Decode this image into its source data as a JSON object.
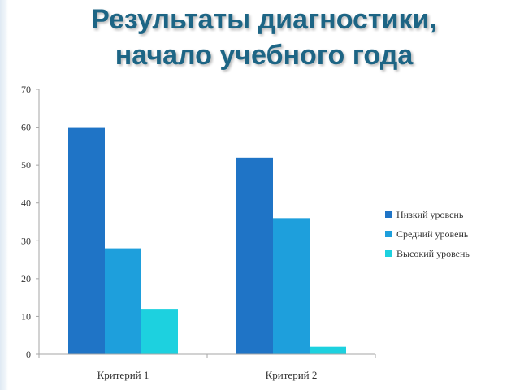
{
  "slide": {
    "title_line1": "Результаты диагностики,",
    "title_line2": "начало учебного года"
  },
  "colors": {
    "title": "#1d6585",
    "axis": "#a6a6a6"
  },
  "chart_data": {
    "type": "bar",
    "categories": [
      "Критерий 1",
      "Критерий 2"
    ],
    "series": [
      {
        "name": "Низкий уровень",
        "values": [
          60,
          52
        ],
        "color": "#1f74c6"
      },
      {
        "name": "Средний уровень",
        "values": [
          28,
          36
        ],
        "color": "#1e9fdc"
      },
      {
        "name": "Высокий уровень",
        "values": [
          12,
          2
        ],
        "color": "#1dd1df"
      }
    ],
    "ylim": [
      0,
      70
    ],
    "yticks": [
      0,
      10,
      20,
      30,
      40,
      50,
      60,
      70
    ],
    "grid": false,
    "legend": "right"
  }
}
